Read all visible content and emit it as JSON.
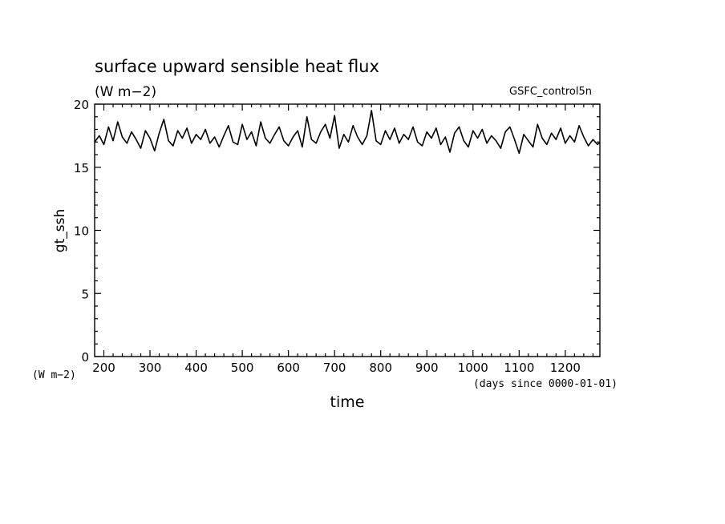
{
  "chart_data": {
    "type": "line",
    "title": "surface upward sensible heat flux",
    "units_label": "(W m−2)",
    "dataset_label": "GSFC_control5n",
    "ylabel": "gt_ssh",
    "xlabel": "time",
    "xunits_label": "(days since 0000-01-01)",
    "yunits_label": "(W m−2)",
    "xlim": [
      180,
      1275
    ],
    "ylim": [
      0,
      20
    ],
    "xticks": [
      "200",
      "300",
      "400",
      "500",
      "600",
      "700",
      "800",
      "900",
      "1000",
      "1100",
      "1200"
    ],
    "yticks": [
      "0",
      "5",
      "10",
      "15",
      "20"
    ],
    "grid": false,
    "line_color": "#000000",
    "series": [
      {
        "x": [
          180,
          190,
          200,
          210,
          220,
          230,
          240,
          250,
          260,
          270,
          280,
          290,
          300,
          310,
          320,
          330,
          340,
          350,
          360,
          370,
          380,
          390,
          400,
          410,
          420,
          430,
          440,
          450,
          460,
          470,
          480,
          490,
          500,
          510,
          520,
          530,
          540,
          550,
          560,
          570,
          580,
          590,
          600,
          610,
          620,
          630,
          640,
          650,
          660,
          670,
          680,
          690,
          700,
          710,
          720,
          730,
          740,
          750,
          760,
          770,
          780,
          790,
          800,
          810,
          820,
          830,
          840,
          850,
          860,
          870,
          880,
          890,
          900,
          910,
          920,
          930,
          940,
          950,
          960,
          970,
          980,
          990,
          1000,
          1010,
          1020,
          1030,
          1040,
          1050,
          1060,
          1070,
          1080,
          1090,
          1100,
          1110,
          1120,
          1130,
          1140,
          1150,
          1160,
          1170,
          1180,
          1190,
          1200,
          1210,
          1220,
          1230,
          1240,
          1250,
          1260,
          1270,
          1275
        ],
        "y": [
          17.0,
          17.5,
          16.8,
          18.2,
          17.1,
          18.6,
          17.4,
          16.9,
          17.8,
          17.2,
          16.5,
          17.9,
          17.3,
          16.3,
          17.7,
          18.8,
          17.1,
          16.7,
          17.9,
          17.3,
          18.1,
          16.9,
          17.6,
          17.2,
          18.0,
          16.9,
          17.4,
          16.6,
          17.5,
          18.3,
          17.0,
          16.8,
          18.4,
          17.2,
          17.8,
          16.7,
          18.6,
          17.3,
          16.9,
          17.6,
          18.2,
          17.1,
          16.7,
          17.4,
          17.9,
          16.6,
          19.0,
          17.2,
          16.9,
          17.8,
          18.4,
          17.3,
          19.1,
          16.5,
          17.6,
          17.0,
          18.3,
          17.4,
          16.8,
          17.5,
          19.5,
          17.1,
          16.8,
          17.9,
          17.2,
          18.1,
          16.9,
          17.6,
          17.2,
          18.2,
          17.0,
          16.7,
          17.8,
          17.3,
          18.1,
          16.8,
          17.4,
          16.2,
          17.7,
          18.2,
          17.1,
          16.6,
          17.9,
          17.3,
          18.0,
          16.9,
          17.5,
          17.1,
          16.5,
          17.8,
          18.2,
          17.2,
          16.1,
          17.6,
          17.1,
          16.6,
          18.4,
          17.3,
          16.8,
          17.7,
          17.2,
          18.1,
          16.9,
          17.5,
          17.0,
          18.3,
          17.4,
          16.7,
          17.2,
          16.8,
          17.0
        ]
      }
    ]
  }
}
